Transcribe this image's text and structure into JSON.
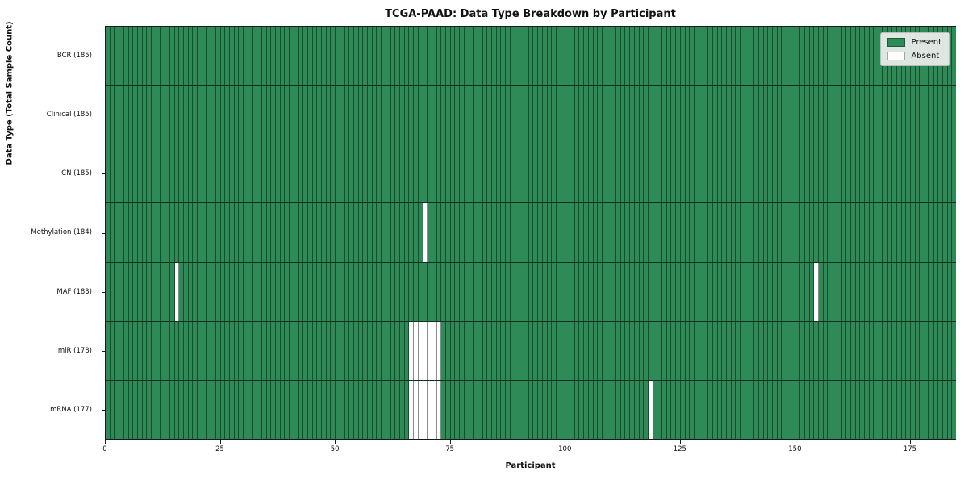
{
  "title": "TCGA-PAAD: Data Type Breakdown by Participant",
  "xlabel": "Participant",
  "ylabel": "Data Type (Total Sample Count)",
  "legend": {
    "present_label": "Present",
    "absent_label": "Absent"
  },
  "colors": {
    "present": "#2e8b57",
    "absent": "#ffffff",
    "gridline": "rgba(0,0,0,0.45)"
  },
  "chart_data": {
    "type": "heatmap",
    "n_participants": 185,
    "x_ticks": [
      0,
      25,
      50,
      75,
      100,
      125,
      150,
      175
    ],
    "x_range": [
      0,
      185
    ],
    "legend_position": "upper right",
    "rows": [
      {
        "label": "BCR (185)",
        "total": 185,
        "absent_participants": []
      },
      {
        "label": "Clinical (185)",
        "total": 185,
        "absent_participants": []
      },
      {
        "label": "CN (185)",
        "total": 185,
        "absent_participants": []
      },
      {
        "label": "Methylation (184)",
        "total": 184,
        "absent_participants": [
          69
        ]
      },
      {
        "label": "MAF (183)",
        "total": 183,
        "absent_participants": [
          15,
          154
        ]
      },
      {
        "label": "miR (178)",
        "total": 178,
        "absent_participants": [
          66,
          67,
          68,
          69,
          70,
          71,
          72
        ]
      },
      {
        "label": "mRNA (177)",
        "total": 177,
        "absent_participants": [
          66,
          67,
          68,
          69,
          70,
          71,
          72,
          118
        ]
      }
    ]
  }
}
